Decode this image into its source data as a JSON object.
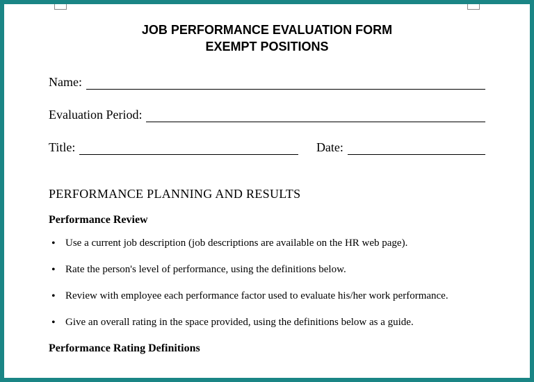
{
  "colors": {
    "frame": "#1a8585",
    "page_bg": "#ffffff",
    "text": "#000000"
  },
  "typography": {
    "body_font": "Times New Roman",
    "title_font": "Arial",
    "title_fontsize_pt": 14,
    "body_fontsize_pt": 13,
    "bullet_fontsize_pt": 11
  },
  "title": {
    "line1": "JOB PERFORMANCE EVALUATION FORM",
    "line2": "EXEMPT POSITIONS"
  },
  "fields": {
    "name_label": "Name:",
    "evaluation_period_label": "Evaluation Period:",
    "title_label": "Title:",
    "date_label": "Date:"
  },
  "section_heading": "PERFORMANCE PLANNING AND RESULTS",
  "subheading": "Performance Review",
  "bullets": [
    "Use a current job description (job descriptions are available on the HR web page).",
    "Rate the person's level of performance, using the definitions below.",
    "Review with employee each performance factor used to evaluate his/her work performance.",
    "Give an overall rating in the space provided, using the definitions below as a guide."
  ],
  "subheading2": "Performance Rating Definitions"
}
